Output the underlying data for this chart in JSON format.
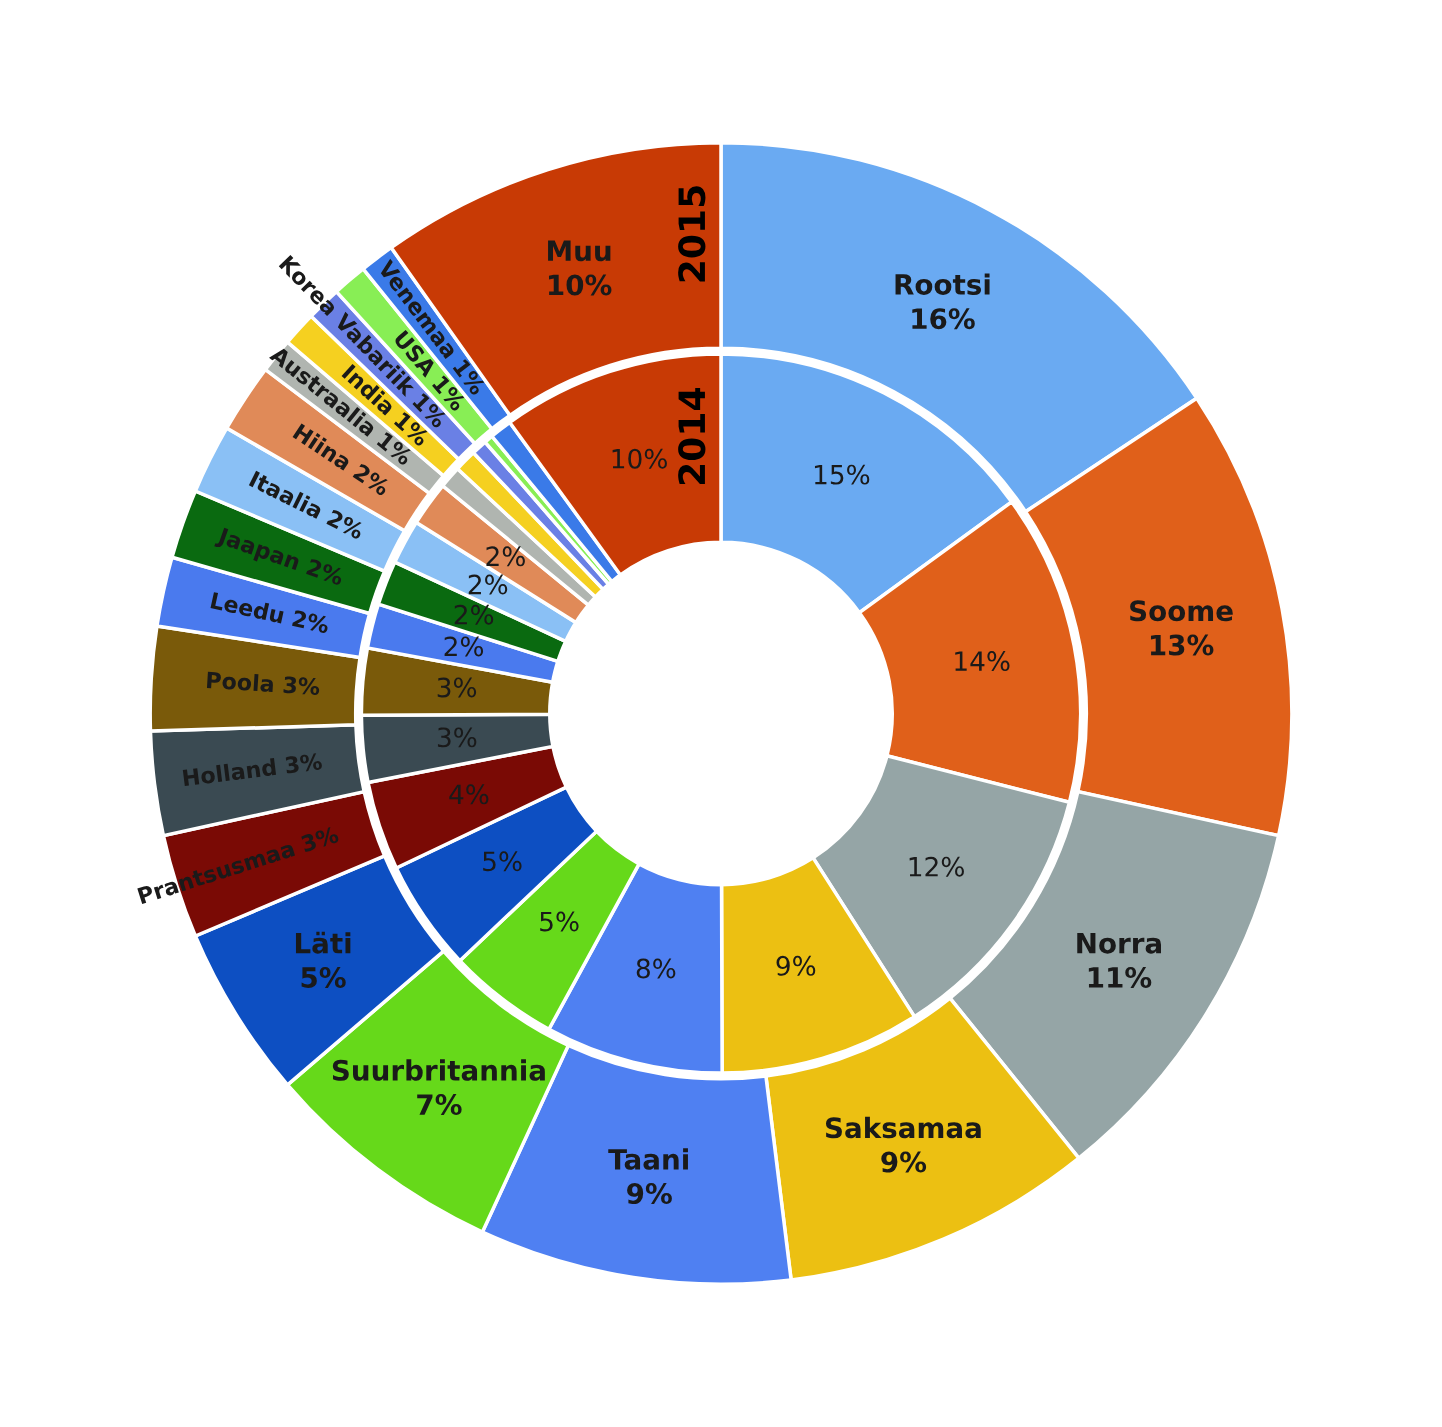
{
  "chart_data": {
    "type": "donut",
    "categories": [
      "Rootsi",
      "Soome",
      "Norra",
      "Saksamaa",
      "Taani",
      "Suurbritannia",
      "Läti",
      "Prantsusmaa",
      "Holland",
      "Poola",
      "Leedu",
      "Jaapan",
      "Itaalia",
      "Hiina",
      "Austraalia",
      "India",
      "Korea Vabariik",
      "USA",
      "Venemaa",
      "Muu"
    ],
    "colors": [
      "#6aaaf2",
      "#e0601a",
      "#95a5a6",
      "#ecc012",
      "#4f80f2",
      "#66d91a",
      "#0d4fc2",
      "#7a0a05",
      "#3a4a52",
      "#7a5a0a",
      "#4a7aee",
      "#0a6a10",
      "#8ac0f5",
      "#e08a58",
      "#b0b5b0",
      "#f5d020",
      "#6a80e5",
      "#88ee55",
      "#3a7ae8",
      "#c83a05"
    ],
    "series": [
      {
        "name": "2015",
        "values": [
          16,
          13,
          11,
          9,
          9,
          7,
          5,
          3,
          3,
          3,
          2,
          2,
          2,
          2,
          1,
          1,
          1,
          1,
          1,
          10
        ],
        "value_labels": [
          "16%",
          "13%",
          "11%",
          "9%",
          "9%",
          "7%",
          "5%",
          "3%",
          "3%",
          "3%",
          "2%",
          "2%",
          "2%",
          "2%",
          "1%",
          "1%",
          "1%",
          "1%",
          "1%",
          "10%"
        ]
      },
      {
        "name": "2014",
        "values": [
          15,
          14,
          12,
          9,
          8,
          5,
          5,
          4,
          3,
          3,
          2,
          2,
          2,
          2,
          1,
          1,
          0.7,
          0.4,
          1,
          10
        ],
        "value_labels": [
          "15%",
          "14%",
          "12%",
          "9%",
          "8%",
          "5%",
          "5%",
          "4%",
          "3%",
          "3%",
          "2%",
          "2%",
          "2%",
          "2%",
          null,
          null,
          null,
          null,
          null,
          "10%"
        ]
      }
    ]
  }
}
